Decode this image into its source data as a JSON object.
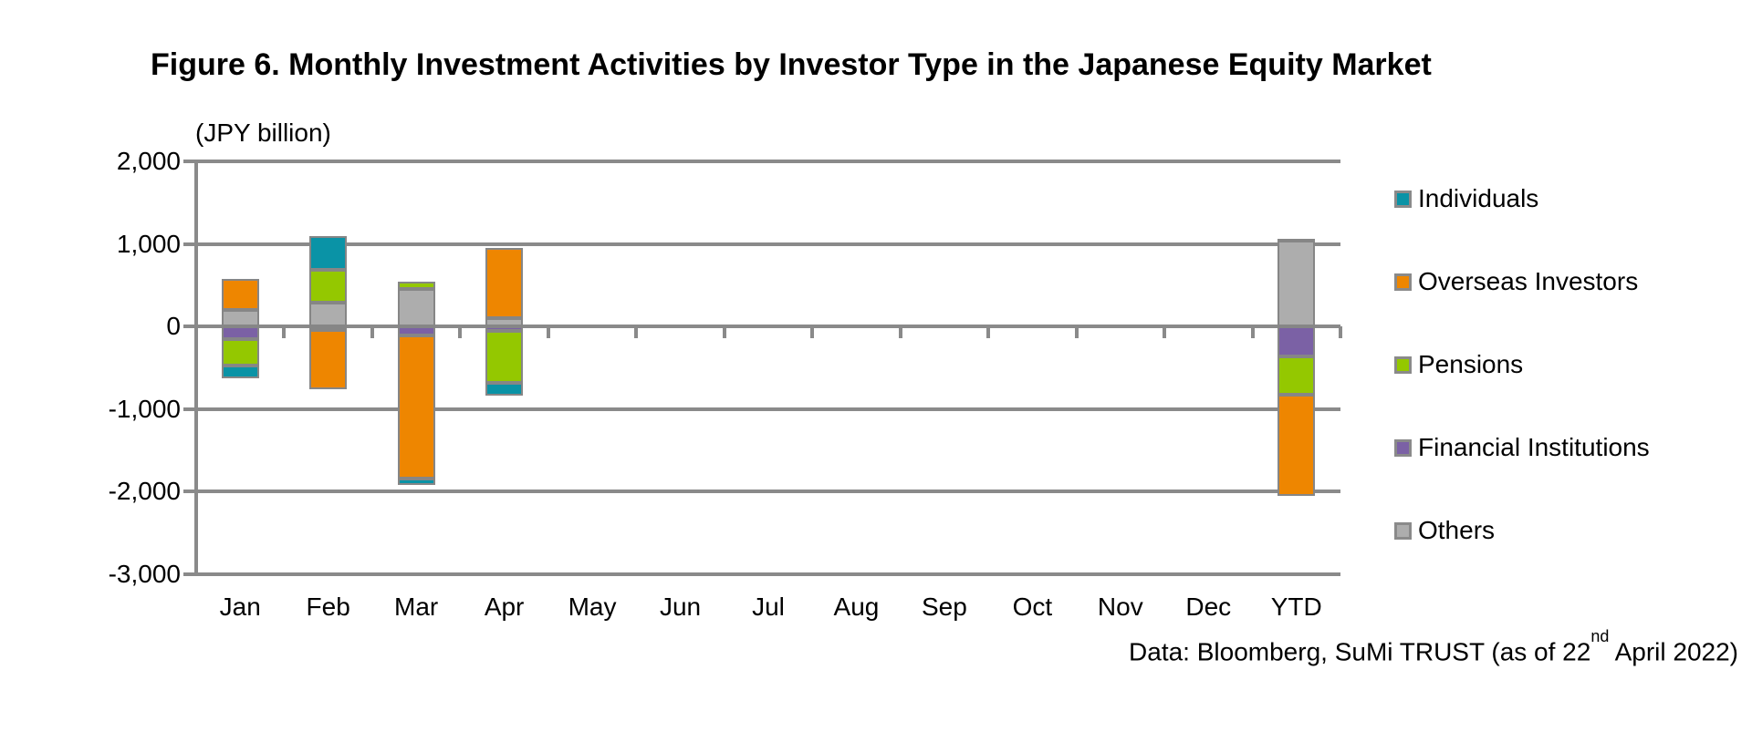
{
  "source_note": {
    "prefix": "Data: Bloomberg, SuMi TRUST (as of 22",
    "superscript": "nd",
    "suffix": " April 2022)"
  },
  "chart_data": {
    "type": "bar",
    "variant": "stacked",
    "title": "Figure 6. Monthly Investment Activities by Investor Type in the Japanese Equity Market",
    "unit_label": "(JPY billion)",
    "categories": [
      "Jan",
      "Feb",
      "Mar",
      "Apr",
      "May",
      "Jun",
      "Jul",
      "Aug",
      "Sep",
      "Oct",
      "Nov",
      "Dec",
      "YTD"
    ],
    "series": [
      {
        "name": "Individuals",
        "color": "#0a93a6",
        "values": [
          -160,
          410,
          -80,
          -150,
          0,
          0,
          0,
          0,
          0,
          0,
          0,
          0,
          20
        ]
      },
      {
        "name": "Overseas Investors",
        "color": "#ee8600",
        "values": [
          370,
          -720,
          -1730,
          850,
          0,
          0,
          0,
          0,
          0,
          0,
          0,
          0,
          -1230
        ]
      },
      {
        "name": "Pensions",
        "color": "#94c800",
        "values": [
          -320,
          390,
          90,
          -630,
          0,
          0,
          0,
          0,
          0,
          0,
          0,
          0,
          -470
        ]
      },
      {
        "name": "Financial Institutions",
        "color": "#7b61a5",
        "values": [
          -150,
          -40,
          -110,
          -60,
          0,
          0,
          0,
          0,
          0,
          0,
          0,
          0,
          -360
        ]
      },
      {
        "name": "Others",
        "color": "#adadad",
        "values": [
          200,
          290,
          450,
          100,
          0,
          0,
          0,
          0,
          0,
          0,
          0,
          0,
          1040
        ]
      }
    ],
    "stack_order_from_axis": [
      "Others",
      "Financial Institutions",
      "Pensions",
      "Overseas Investors",
      "Individuals"
    ],
    "ylim": [
      -3000,
      2000
    ],
    "y_tick_step": 1000,
    "y_tick_labels": [
      "2,000",
      "1,000",
      "0",
      "-1,000",
      "-2,000",
      "-3,000"
    ],
    "grid": true,
    "legend_position": "right",
    "axis_color": "#8a8a8a",
    "bar_outline_color": "#868686"
  }
}
